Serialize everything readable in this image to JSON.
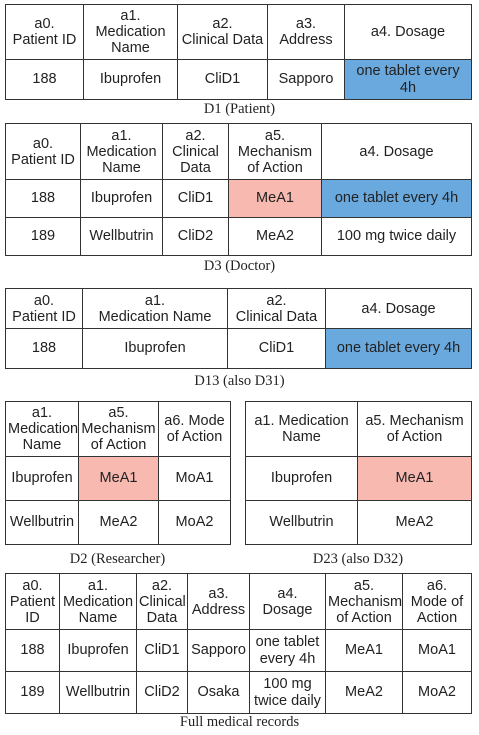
{
  "colors": {
    "highlight_pink": "#f8b9b0",
    "highlight_blue": "#6aa9de"
  },
  "d1": {
    "caption": "D1 (Patient)",
    "headers": [
      "a0.\nPatient ID",
      "a1.\nMedication\nName",
      "a2.\nClinical Data",
      "a3.\nAddress",
      "a4. Dosage"
    ],
    "rows": [
      [
        "188",
        "Ibuprofen",
        "CliD1",
        "Sapporo",
        "one tablet every 4h"
      ]
    ]
  },
  "d3": {
    "caption": "D3 (Doctor)",
    "headers": [
      "a0.\nPatient ID",
      "a1.\nMedication\nName",
      "a2.\nClinical\nData",
      "a5.\nMechanism\nof Action",
      "a4. Dosage"
    ],
    "rows": [
      [
        "188",
        "Ibuprofen",
        "CliD1",
        "MeA1",
        "one tablet every 4h"
      ],
      [
        "189",
        "Wellbutrin",
        "CliD2",
        "MeA2",
        "100 mg twice daily"
      ]
    ]
  },
  "d13": {
    "caption": "D13 (also D31)",
    "headers": [
      "a0.\nPatient ID",
      "a1.\nMedication Name",
      "a2.\nClinical Data",
      "a4. Dosage"
    ],
    "rows": [
      [
        "188",
        "Ibuprofen",
        "CliD1",
        "one tablet every 4h"
      ]
    ]
  },
  "d2": {
    "caption": "D2 (Researcher)",
    "headers": [
      "a1.\nMedication\nName",
      "a5.\nMechanism\nof Action",
      "a6. Mode\nof Action"
    ],
    "rows": [
      [
        "Ibuprofen",
        "MeA1",
        "MoA1"
      ],
      [
        "Wellbutrin",
        "MeA2",
        "MoA2"
      ]
    ]
  },
  "d23": {
    "caption": "D23 (also D32)",
    "headers": [
      "a1. Medication\nName",
      "a5. Mechanism\nof Action"
    ],
    "rows": [
      [
        "Ibuprofen",
        "MeA1"
      ],
      [
        "Wellbutrin",
        "MeA2"
      ]
    ]
  },
  "full": {
    "caption": "Full medical records",
    "headers": [
      "a0.\nPatient\nID",
      "a1.\nMedication\nName",
      "a2.\nClinical\nData",
      "a3.\nAddress",
      "a4.\nDosage",
      "a5.\nMechanism\nof Action",
      "a6.\nMode of\nAction"
    ],
    "rows": [
      [
        "188",
        "Ibuprofen",
        "CliD1",
        "Sapporo",
        "one tablet\nevery 4h",
        "MeA1",
        "MoA1"
      ],
      [
        "189",
        "Wellbutrin",
        "CliD2",
        "Osaka",
        "100 mg\ntwice daily",
        "MeA2",
        "MoA2"
      ]
    ]
  }
}
